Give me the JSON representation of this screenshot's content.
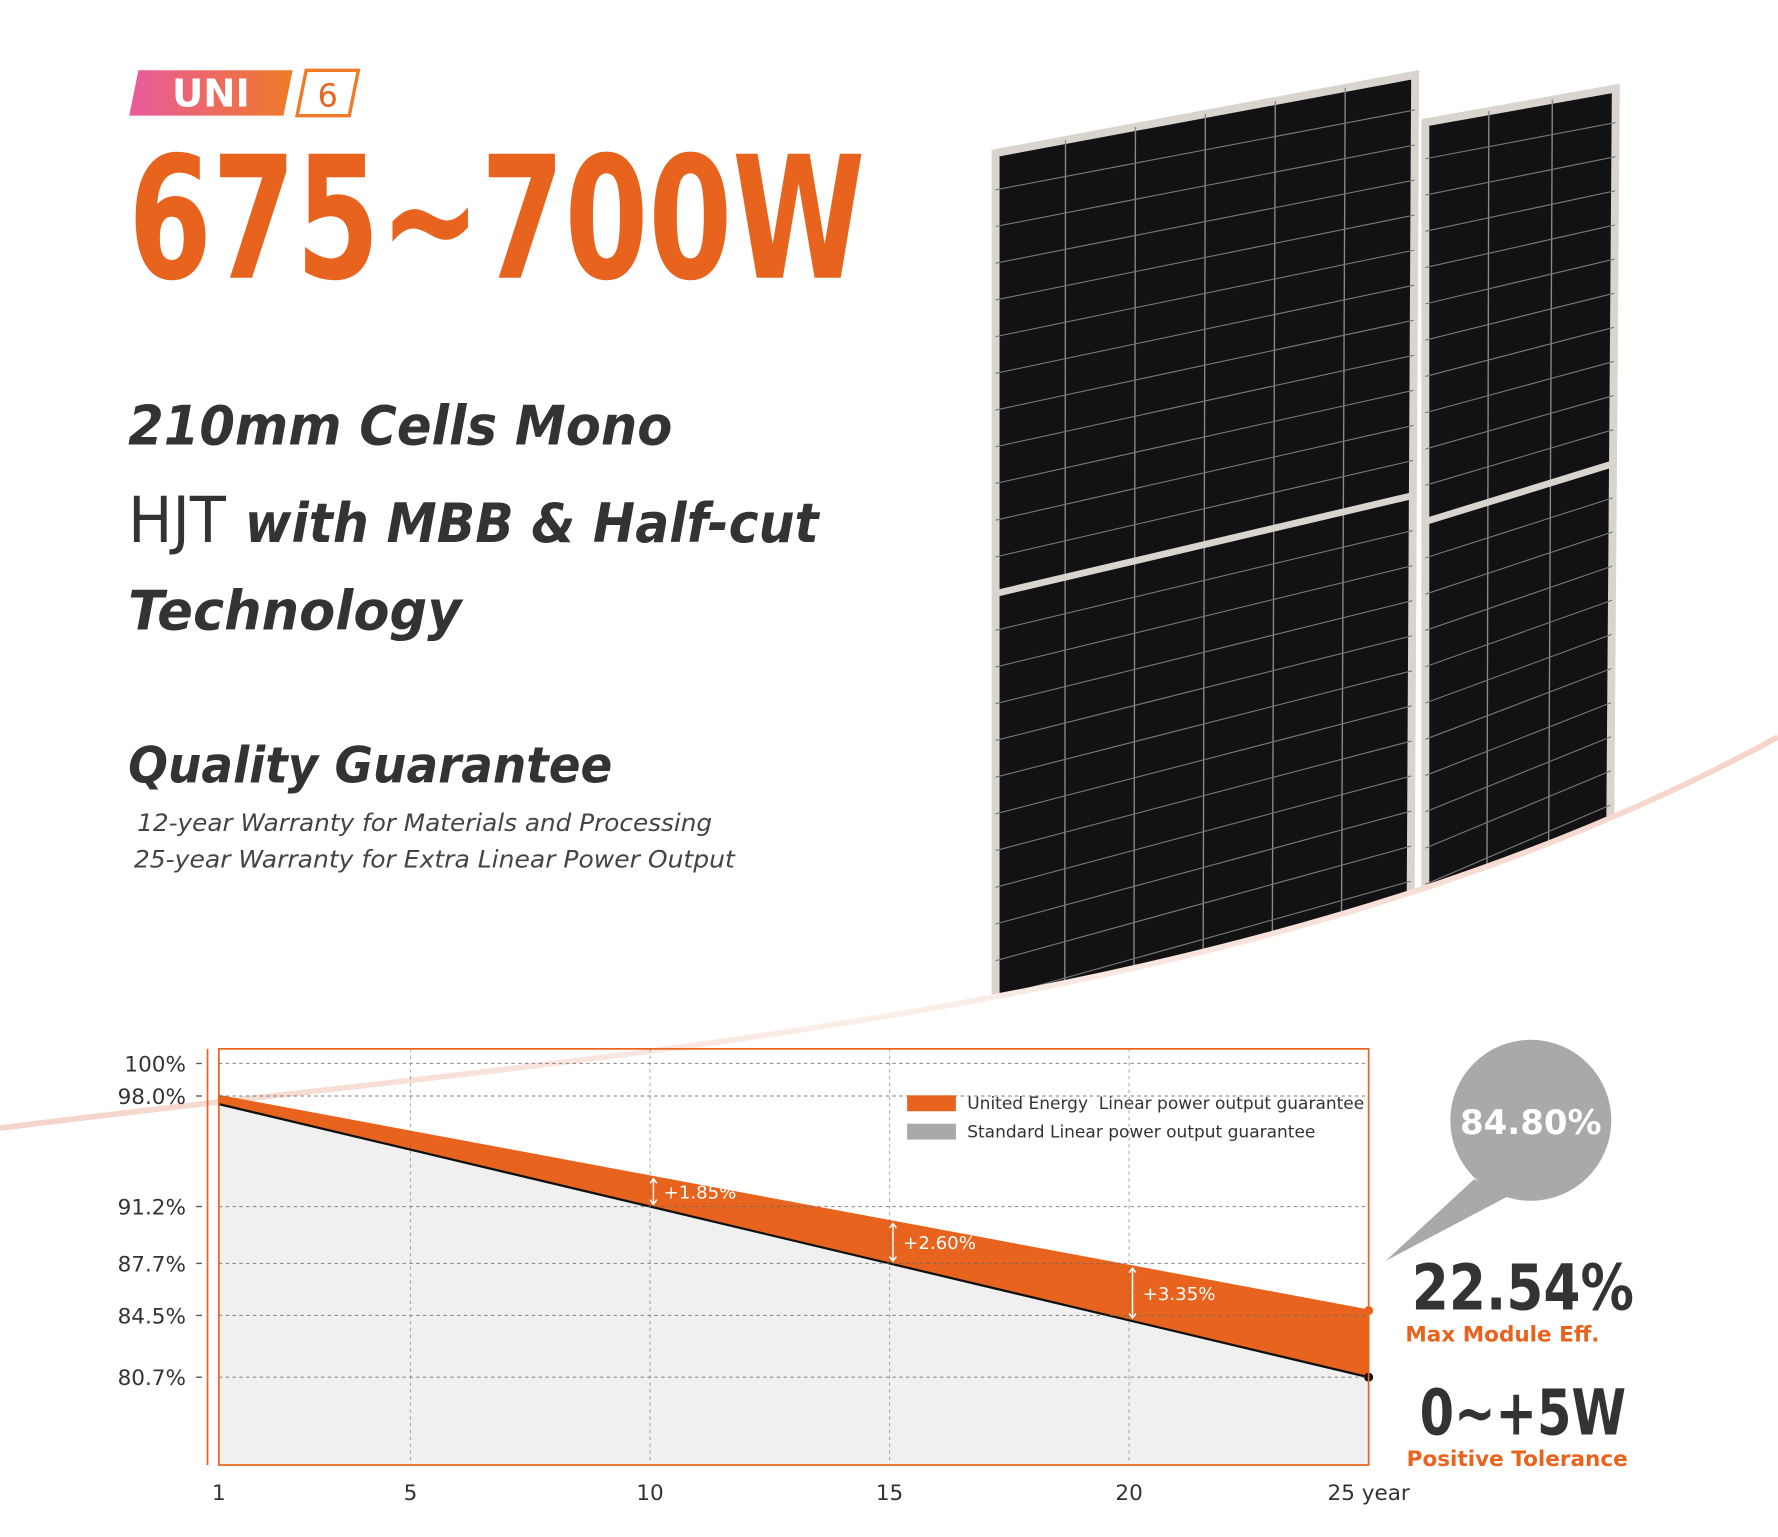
{
  "header": {
    "badge": "UNI",
    "series_number": "6",
    "power_range": "675~700W"
  },
  "technology": {
    "line1": "210mm Cells Mono",
    "hjt": "HJT",
    "line2": "with MBB & Half-cut",
    "line3": "Technology"
  },
  "quality": {
    "title": "Quality Guarantee",
    "items": [
      "12-year Warranty for Materials and Processing",
      "25-year Warranty for Extra Linear Power Output"
    ]
  },
  "highlights": {
    "bubble": "84.80%",
    "efficiency": "22.54%",
    "efficiency_label": "Max Module Eff.",
    "tolerance": "0~+5W",
    "tolerance_label": "Positive Tolerance"
  },
  "chart_data": {
    "type": "area",
    "xlim": [
      1,
      25
    ],
    "xticks": [
      1,
      5,
      10,
      15,
      20,
      {
        "value": 25,
        "label": "25 year"
      }
    ],
    "ylim": [
      75.3,
      100.9
    ],
    "yticks": [
      {
        "value": 100,
        "label": "100%"
      },
      {
        "value": 98,
        "label": "98.0%"
      },
      {
        "value": 91.2,
        "label": "91.2%"
      },
      {
        "value": 87.7,
        "label": "87.7%"
      },
      {
        "value": 84.5,
        "label": "84.5%"
      },
      {
        "value": 80.7,
        "label": "80.7%"
      }
    ],
    "grid": true,
    "legend": "top-right",
    "x": [
      1,
      10,
      15,
      20,
      25
    ],
    "series": [
      {
        "name": "United Energy  Linear power output guarantee",
        "color": "#e8641e",
        "values": [
          98,
          93.05,
          90.3,
          87.55,
          84.8
        ]
      },
      {
        "name": "Standard Linear power output guarantee",
        "color": "#a9a9a9",
        "values": [
          97.5,
          91.2,
          87.7,
          84.2,
          80.7
        ]
      }
    ],
    "annotations": [
      {
        "x": 10,
        "label": "+1.85%"
      },
      {
        "x": 15,
        "label": "+2.60%"
      },
      {
        "x": 20,
        "label": "+3.35%"
      }
    ]
  }
}
